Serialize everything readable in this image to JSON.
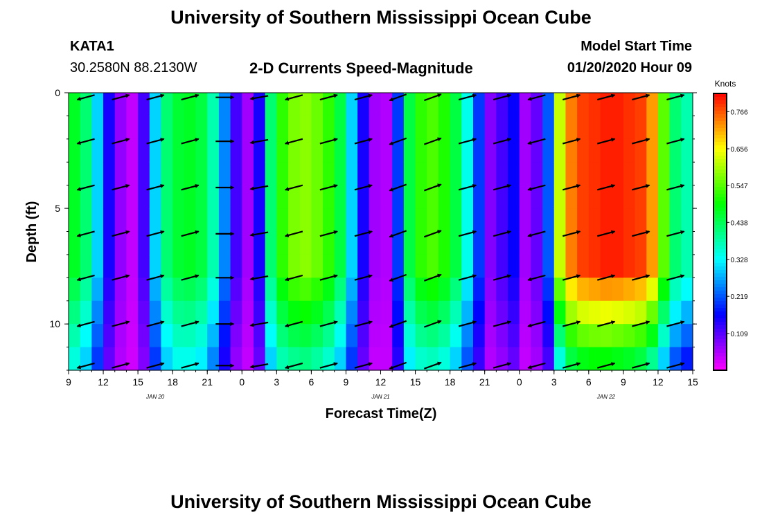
{
  "header": {
    "title": "University of Southern Mississippi Ocean Cube",
    "station_id": "KATA1",
    "station_coords": "30.2580N 88.2130W",
    "product": "2-D Currents Speed-Magnitude",
    "start_label": "Model Start Time",
    "start_value": "01/20/2020 Hour 09"
  },
  "footer": {
    "title": "University of Southern Mississippi Ocean Cube"
  },
  "chart_data": {
    "type": "heatmap",
    "title": "2-D Currents Speed-Magnitude",
    "xlabel": "Forecast Time(Z)",
    "ylabel": "Depth (ft)",
    "x_range_hours": [
      0,
      54
    ],
    "ylim": [
      0,
      12
    ],
    "y_ticks": [
      0,
      5,
      10
    ],
    "x_tick_labels": [
      "9",
      "12",
      "15",
      "18",
      "21",
      "0",
      "3",
      "6",
      "9",
      "12",
      "15",
      "18",
      "21",
      "0",
      "3",
      "6",
      "9",
      "12",
      "15"
    ],
    "date_labels": [
      {
        "text": "JAN  20",
        "hour": 7.5
      },
      {
        "text": "JAN  21",
        "hour": 27
      },
      {
        "text": "JAN  22",
        "hour": 46.5
      }
    ],
    "colorbar": {
      "unit": "Knots",
      "min": 0.0,
      "max": 0.82,
      "tick_labels": [
        "0.766",
        "0.656",
        "0.547",
        "0.438",
        "0.328",
        "0.219",
        "0.109"
      ],
      "tick_values": [
        0.766,
        0.656,
        0.547,
        0.438,
        0.328,
        0.219,
        0.109
      ]
    },
    "depth_bins_ft": [
      0.5,
      1.5,
      2.5,
      3.5,
      4.5,
      5.5,
      6.5,
      7.5,
      8.5,
      9.5,
      10.5,
      11.5
    ],
    "speed_profile": [
      {
        "hour": 0,
        "surface": 0.47,
        "deep": 0.35
      },
      {
        "hour": 1,
        "surface": 0.42,
        "deep": 0.3
      },
      {
        "hour": 2,
        "surface": 0.3,
        "deep": 0.2
      },
      {
        "hour": 3,
        "surface": 0.15,
        "deep": 0.1
      },
      {
        "hour": 4,
        "surface": 0.07,
        "deep": 0.05
      },
      {
        "hour": 5,
        "surface": 0.04,
        "deep": 0.03
      },
      {
        "hour": 6,
        "surface": 0.12,
        "deep": 0.08
      },
      {
        "hour": 7,
        "surface": 0.3,
        "deep": 0.2
      },
      {
        "hour": 8,
        "surface": 0.42,
        "deep": 0.3
      },
      {
        "hour": 9,
        "surface": 0.46,
        "deep": 0.34
      },
      {
        "hour": 10,
        "surface": 0.47,
        "deep": 0.34
      },
      {
        "hour": 11,
        "surface": 0.45,
        "deep": 0.32
      },
      {
        "hour": 12,
        "surface": 0.38,
        "deep": 0.25
      },
      {
        "hour": 13,
        "surface": 0.25,
        "deep": 0.15
      },
      {
        "hour": 14,
        "surface": 0.12,
        "deep": 0.07
      },
      {
        "hour": 15,
        "surface": 0.06,
        "deep": 0.04
      },
      {
        "hour": 16,
        "surface": 0.15,
        "deep": 0.1
      },
      {
        "hour": 17,
        "surface": 0.42,
        "deep": 0.3
      },
      {
        "hour": 18,
        "surface": 0.52,
        "deep": 0.38
      },
      {
        "hour": 19,
        "surface": 0.57,
        "deep": 0.4
      },
      {
        "hour": 20,
        "surface": 0.58,
        "deep": 0.41
      },
      {
        "hour": 21,
        "surface": 0.56,
        "deep": 0.39
      },
      {
        "hour": 22,
        "surface": 0.52,
        "deep": 0.36
      },
      {
        "hour": 23,
        "surface": 0.45,
        "deep": 0.3
      },
      {
        "hour": 24,
        "surface": 0.3,
        "deep": 0.2
      },
      {
        "hour": 25,
        "surface": 0.15,
        "deep": 0.1
      },
      {
        "hour": 26,
        "surface": 0.06,
        "deep": 0.04
      },
      {
        "hour": 27,
        "surface": 0.05,
        "deep": 0.04
      },
      {
        "hour": 28,
        "surface": 0.2,
        "deep": 0.14
      },
      {
        "hour": 29,
        "surface": 0.45,
        "deep": 0.32
      },
      {
        "hour": 30,
        "surface": 0.52,
        "deep": 0.36
      },
      {
        "hour": 31,
        "surface": 0.54,
        "deep": 0.37
      },
      {
        "hour": 32,
        "surface": 0.51,
        "deep": 0.35
      },
      {
        "hour": 33,
        "surface": 0.45,
        "deep": 0.3
      },
      {
        "hour": 34,
        "surface": 0.34,
        "deep": 0.22
      },
      {
        "hour": 35,
        "surface": 0.2,
        "deep": 0.13
      },
      {
        "hour": 36,
        "surface": 0.08,
        "deep": 0.05
      },
      {
        "hour": 37,
        "surface": 0.12,
        "deep": 0.07
      },
      {
        "hour": 38,
        "surface": 0.16,
        "deep": 0.1
      },
      {
        "hour": 39,
        "surface": 0.06,
        "deep": 0.04
      },
      {
        "hour": 40,
        "surface": 0.1,
        "deep": 0.06
      },
      {
        "hour": 41,
        "surface": 0.22,
        "deep": 0.12
      },
      {
        "hour": 42,
        "surface": 0.62,
        "deep": 0.35
      },
      {
        "hour": 43,
        "surface": 0.74,
        "deep": 0.45
      },
      {
        "hour": 44,
        "surface": 0.78,
        "deep": 0.48
      },
      {
        "hour": 45,
        "surface": 0.79,
        "deep": 0.49
      },
      {
        "hour": 46,
        "surface": 0.8,
        "deep": 0.49
      },
      {
        "hour": 47,
        "surface": 0.8,
        "deep": 0.48
      },
      {
        "hour": 48,
        "surface": 0.79,
        "deep": 0.47
      },
      {
        "hour": 49,
        "surface": 0.78,
        "deep": 0.45
      },
      {
        "hour": 50,
        "surface": 0.72,
        "deep": 0.4
      },
      {
        "hour": 51,
        "surface": 0.55,
        "deep": 0.3
      },
      {
        "hour": 52,
        "surface": 0.42,
        "deep": 0.22
      },
      {
        "hour": 53,
        "surface": 0.38,
        "deep": 0.18
      }
    ],
    "vector_rows_ft": [
      0.2,
      2.1,
      4.1,
      6.1,
      8.0,
      10.0,
      11.8
    ],
    "vector_cols_hours": [
      1.5,
      4.5,
      7.5,
      10.5,
      13.5,
      16.5,
      19.5,
      22.5,
      25.5,
      28.5,
      31.5,
      34.5,
      37.5,
      40.5,
      43.5,
      46.5,
      49.5,
      52.5
    ],
    "vector_directions_deg": [
      195,
      15,
      15,
      15,
      0,
      190,
      195,
      15,
      15,
      200,
      20,
      15,
      15,
      195,
      15,
      15,
      15,
      15
    ]
  }
}
